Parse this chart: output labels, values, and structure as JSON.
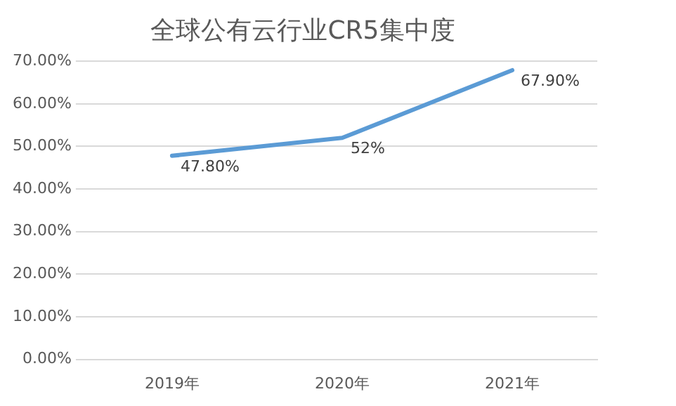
{
  "chart_data": {
    "type": "line",
    "title": "全球公有云行业CR5集中度",
    "categories": [
      "2019年",
      "2020年",
      "2021年"
    ],
    "series": [
      {
        "color": "#5b9bd5",
        "values": [
          47.8,
          52,
          67.9
        ],
        "value_labels": [
          "47.80%",
          "52%",
          "67.90%"
        ]
      }
    ],
    "ylim": [
      0,
      70
    ],
    "yticks": [
      {
        "value": 0,
        "label": "0.00%"
      },
      {
        "value": 10,
        "label": "10.00%"
      },
      {
        "value": 20,
        "label": "20.00%"
      },
      {
        "value": 30,
        "label": "30.00%"
      },
      {
        "value": 40,
        "label": "40.00%"
      },
      {
        "value": 50,
        "label": "50.00%"
      },
      {
        "value": 60,
        "label": "60.00%"
      },
      {
        "value": 70,
        "label": "70.00%"
      }
    ],
    "grid": "y",
    "legend": false,
    "marker": "none",
    "line_style": "solid"
  }
}
